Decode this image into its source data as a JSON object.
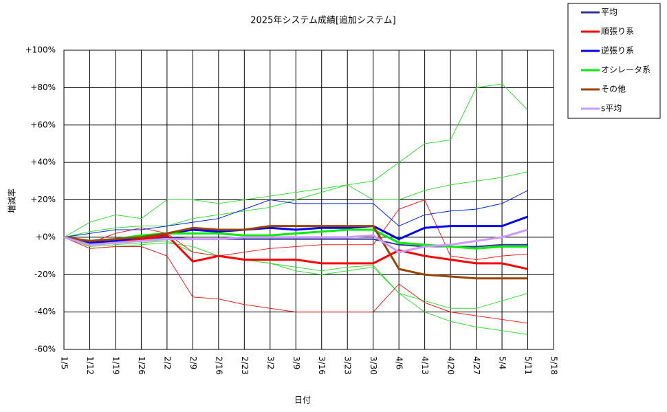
{
  "chart_data": {
    "type": "line",
    "title": "2025年システム成績[追加システム]",
    "x_label": "日付",
    "y_label": "増減率",
    "categories": [
      "1/5",
      "1/12",
      "1/19",
      "1/26",
      "2/2",
      "2/9",
      "2/16",
      "2/23",
      "3/2",
      "3/9",
      "3/16",
      "3/23",
      "3/30",
      "4/6",
      "4/13",
      "4/20",
      "4/27",
      "5/4",
      "5/11",
      "5/18"
    ],
    "ylim": [
      -60,
      100
    ],
    "yticks": [
      {
        "value": -60,
        "label": "-60%"
      },
      {
        "value": -40,
        "label": "-40%"
      },
      {
        "value": -20,
        "label": "-20%"
      },
      {
        "value": 0,
        "label": "+0%"
      },
      {
        "value": 20,
        "label": "+20%"
      },
      {
        "value": 40,
        "label": "+40%"
      },
      {
        "value": 60,
        "label": "+60%"
      },
      {
        "value": 80,
        "label": "+80%"
      },
      {
        "value": 100,
        "label": "+100%"
      }
    ],
    "grid": true,
    "legend": "outside-top-right",
    "series": [
      {
        "color": "#33dd33",
        "width": 1,
        "values": [
          0,
          8,
          12,
          10,
          20,
          20,
          18,
          20,
          22,
          24,
          26,
          28,
          30,
          40,
          50,
          52,
          80,
          82,
          68,
          null
        ]
      },
      {
        "color": "#33dd33",
        "width": 1,
        "values": [
          0,
          3,
          5,
          6,
          6,
          10,
          12,
          14,
          16,
          20,
          24,
          28,
          20,
          20,
          25,
          28,
          30,
          32,
          35,
          null
        ]
      },
      {
        "color": "#33dd33",
        "width": 1,
        "values": [
          0,
          -5,
          -4,
          -3,
          -2,
          -8,
          -10,
          -12,
          -14,
          -16,
          -18,
          -16,
          -15,
          -30,
          -34,
          -38,
          -38,
          -34,
          -30,
          null
        ]
      },
      {
        "color": "#33dd33",
        "width": 1,
        "values": [
          0,
          -6,
          -5,
          -4,
          -3,
          -5,
          -10,
          -12,
          -14,
          -18,
          -20,
          -18,
          -16,
          -30,
          -40,
          -45,
          -48,
          -50,
          -52,
          null
        ]
      },
      {
        "color": "#ee2222",
        "width": 1,
        "values": [
          0,
          -6,
          -5,
          -5,
          -10,
          -32,
          -33,
          -36,
          -38,
          -40,
          -40,
          -40,
          -40,
          -25,
          -35,
          -40,
          -42,
          -44,
          -46,
          null
        ]
      },
      {
        "color": "#ee2222",
        "width": 1,
        "values": [
          0,
          -3,
          2,
          5,
          2,
          -8,
          -10,
          -8,
          -6,
          -5,
          -4,
          -4,
          -4,
          15,
          20,
          -10,
          -12,
          -10,
          -9,
          null
        ]
      },
      {
        "color": "#0022ee",
        "width": 1,
        "values": [
          0,
          2,
          4,
          4,
          6,
          8,
          10,
          15,
          20,
          18,
          18,
          18,
          18,
          6,
          12,
          14,
          15,
          18,
          25,
          null
        ]
      },
      {
        "name": "平均",
        "color": "#333399",
        "width": 2,
        "values": [
          0,
          -4,
          -3,
          -1,
          0,
          -1,
          -1,
          -1,
          -1,
          -1,
          -1,
          -1,
          -1,
          -4,
          -5,
          -5,
          -5,
          -4,
          -4,
          null
        ]
      },
      {
        "name": "順張り系",
        "color": "#ff0000",
        "width": 3,
        "values": [
          0,
          -4,
          -3,
          -1,
          1,
          -13,
          -10,
          -12,
          -12,
          -12,
          -14,
          -14,
          -14,
          -7,
          -10,
          -12,
          -14,
          -14,
          -17,
          null
        ]
      },
      {
        "name": "逆張り系",
        "color": "#0000ee",
        "width": 3,
        "values": [
          0,
          -3,
          -2,
          0,
          2,
          4,
          3,
          4,
          5,
          4,
          5,
          5,
          6,
          -1,
          5,
          6,
          6,
          6,
          11,
          null
        ]
      },
      {
        "name": "オシレータ系",
        "color": "#00ee00",
        "width": 3,
        "values": [
          0,
          -2,
          -1,
          1,
          2,
          2,
          2,
          1,
          1,
          2,
          3,
          4,
          4,
          -3,
          -4,
          -5,
          -6,
          -5,
          -5,
          null
        ]
      },
      {
        "name": "その他",
        "color": "#994400",
        "width": 3,
        "values": [
          0,
          -2,
          -1,
          0,
          2,
          5,
          4,
          4,
          6,
          6,
          6,
          6,
          6,
          -17,
          -20,
          -21,
          -22,
          -22,
          -22,
          null
        ]
      },
      {
        "name": "s平均",
        "color": "#cc99ff",
        "width": 3,
        "values": [
          0,
          -4,
          -3,
          -2,
          -1,
          -1,
          -1,
          0,
          0,
          0,
          0,
          0,
          1,
          -8,
          -5,
          -4,
          -2,
          0,
          4,
          null
        ]
      }
    ]
  }
}
